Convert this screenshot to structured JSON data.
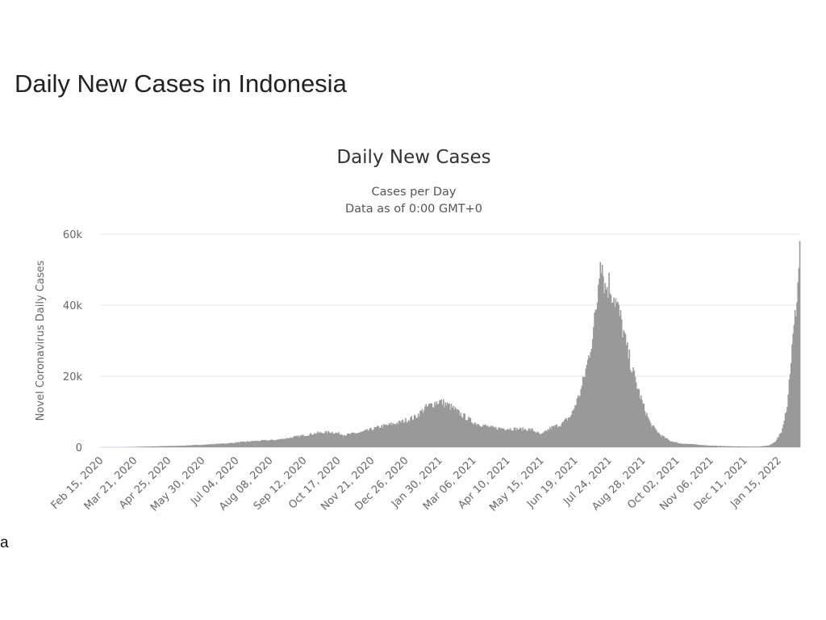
{
  "page": {
    "heading": "Daily New Cases in Indonesia",
    "stray_label": "a"
  },
  "chart_data": {
    "type": "bar",
    "title": "Daily New Cases",
    "subtitle_lines": [
      "Cases per Day",
      "Data as of 0:00 GMT+0"
    ],
    "xlabel": "",
    "ylabel": "Novel Coronavirus Daily Cases",
    "ylim": [
      0,
      60000
    ],
    "yticks": [
      0,
      20000,
      40000,
      60000
    ],
    "ytick_labels": [
      "0",
      "20k",
      "40k",
      "60k"
    ],
    "xlim": [
      "2020-02-15",
      "2022-02-06"
    ],
    "xtick_labels": [
      "Feb 15, 2020",
      "Mar 21, 2020",
      "Apr 25, 2020",
      "May 30, 2020",
      "Jul 04, 2020",
      "Aug 08, 2020",
      "Sep 12, 2020",
      "Oct 17, 2020",
      "Nov 21, 2020",
      "Dec 26, 2020",
      "Jan 30, 2021",
      "Mar 06, 2021",
      "Apr 10, 2021",
      "May 15, 2021",
      "Jun 19, 2021",
      "Jul 24, 2021",
      "Aug 28, 2021",
      "Oct 02, 2021",
      "Nov 06, 2021",
      "Dec 11, 2021",
      "Jan 15, 2022"
    ],
    "grid": true,
    "legend": "none",
    "bar_color": "#999999",
    "grid_color": "#e6e6e6",
    "series": [
      {
        "points": [
          [
            "2020-02-15",
            0
          ],
          [
            "2020-03-10",
            0
          ],
          [
            "2020-03-25",
            150
          ],
          [
            "2020-04-15",
            300
          ],
          [
            "2020-05-05",
            400
          ],
          [
            "2020-05-30",
            700
          ],
          [
            "2020-06-25",
            1100
          ],
          [
            "2020-07-20",
            1700
          ],
          [
            "2020-08-15",
            2100
          ],
          [
            "2020-09-05",
            3000
          ],
          [
            "2020-09-25",
            4000
          ],
          [
            "2020-10-10",
            4300
          ],
          [
            "2020-10-25",
            3500
          ],
          [
            "2020-11-10",
            4200
          ],
          [
            "2020-11-30",
            5800
          ],
          [
            "2020-12-20",
            7000
          ],
          [
            "2021-01-05",
            8500
          ],
          [
            "2021-01-15",
            11000
          ],
          [
            "2021-01-25",
            12500
          ],
          [
            "2021-01-30",
            13000
          ],
          [
            "2021-02-10",
            11500
          ],
          [
            "2021-02-20",
            9500
          ],
          [
            "2021-03-06",
            7000
          ],
          [
            "2021-03-25",
            5500
          ],
          [
            "2021-04-15",
            5200
          ],
          [
            "2021-05-05",
            5000
          ],
          [
            "2021-05-15",
            3500
          ],
          [
            "2021-05-25",
            5500
          ],
          [
            "2021-06-05",
            6500
          ],
          [
            "2021-06-15",
            9000
          ],
          [
            "2021-06-25",
            16000
          ],
          [
            "2021-07-02",
            24000
          ],
          [
            "2021-07-08",
            33000
          ],
          [
            "2021-07-12",
            42000
          ],
          [
            "2021-07-15",
            56000
          ],
          [
            "2021-07-20",
            45000
          ],
          [
            "2021-07-24",
            46000
          ],
          [
            "2021-07-30",
            42000
          ],
          [
            "2021-08-05",
            36000
          ],
          [
            "2021-08-12",
            27000
          ],
          [
            "2021-08-20",
            19000
          ],
          [
            "2021-08-28",
            12000
          ],
          [
            "2021-09-05",
            6500
          ],
          [
            "2021-09-15",
            3500
          ],
          [
            "2021-09-25",
            1800
          ],
          [
            "2021-10-05",
            1100
          ],
          [
            "2021-10-20",
            800
          ],
          [
            "2021-11-06",
            450
          ],
          [
            "2021-12-01",
            250
          ],
          [
            "2021-12-25",
            180
          ],
          [
            "2022-01-05",
            500
          ],
          [
            "2022-01-12",
            1500
          ],
          [
            "2022-01-18",
            4500
          ],
          [
            "2022-01-24",
            12000
          ],
          [
            "2022-01-28",
            25000
          ],
          [
            "2022-02-01",
            36000
          ],
          [
            "2022-02-04",
            46000
          ],
          [
            "2022-02-06",
            57000
          ]
        ]
      }
    ]
  }
}
